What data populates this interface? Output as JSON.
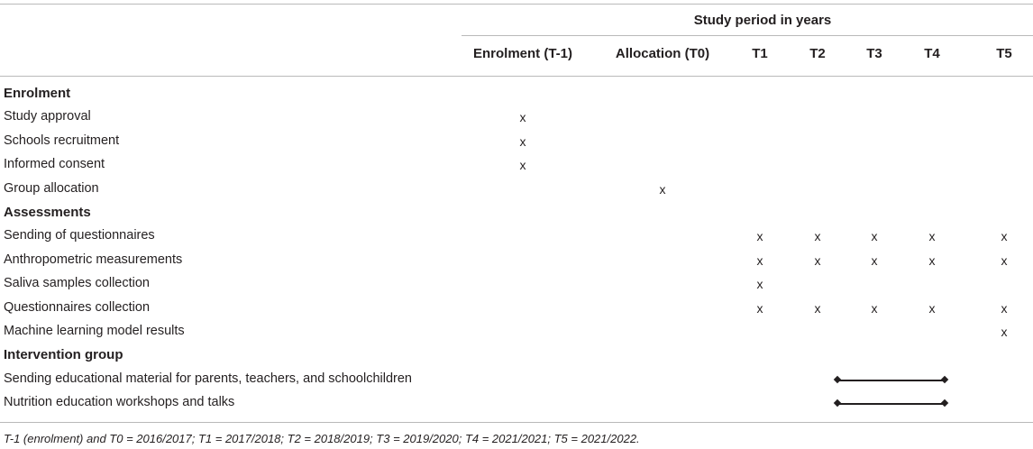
{
  "table": {
    "group_header": "Study period in years",
    "columns": [
      "Enrolment (T-1)",
      "Allocation (T0)",
      "T1",
      "T2",
      "T3",
      "T4",
      "T5"
    ],
    "rows": [
      {
        "type": "section",
        "label": "Enrolment"
      },
      {
        "type": "row",
        "label": "Study approval",
        "marks": [
          "x",
          "",
          "",
          "",
          "",
          "",
          ""
        ]
      },
      {
        "type": "row",
        "label": "Schools recruitment",
        "marks": [
          "x",
          "",
          "",
          "",
          "",
          "",
          ""
        ]
      },
      {
        "type": "row",
        "label": "Informed consent",
        "marks": [
          "x",
          "",
          "",
          "",
          "",
          "",
          ""
        ]
      },
      {
        "type": "row",
        "label": "Group allocation",
        "marks": [
          "",
          "x",
          "",
          "",
          "",
          "",
          ""
        ]
      },
      {
        "type": "section",
        "label": "Assessments"
      },
      {
        "type": "row",
        "label": "Sending of questionnaires",
        "marks": [
          "",
          "",
          "x",
          "x",
          "x",
          "x",
          "x"
        ]
      },
      {
        "type": "row",
        "label": "Anthropometric measurements",
        "marks": [
          "",
          "",
          "x",
          "x",
          "x",
          "x",
          "x"
        ]
      },
      {
        "type": "row",
        "label": "Saliva samples collection",
        "marks": [
          "",
          "",
          "x",
          "",
          "",
          "",
          ""
        ]
      },
      {
        "type": "row",
        "label": "Questionnaires collection",
        "marks": [
          "",
          "",
          "x",
          "x",
          "x",
          "x",
          "x"
        ]
      },
      {
        "type": "row",
        "label": "Machine learning model results",
        "marks": [
          "",
          "",
          "",
          "",
          "",
          "",
          "x"
        ]
      },
      {
        "type": "section",
        "label": "Intervention group"
      },
      {
        "type": "span",
        "label": "Sending educational material for parents, teachers, and schoolchildren",
        "span_from": "T3",
        "span_to": "T4"
      },
      {
        "type": "span",
        "label": "Nutrition education workshops and talks",
        "span_from": "T3",
        "span_to": "T4"
      }
    ]
  },
  "footnote": "T-1 (enrolment) and T0 = 2016/2017; T1 = 2017/2018; T2 = 2018/2019; T3 = 2019/2020; T4 = 2021/2021; T5 = 2021/2022."
}
